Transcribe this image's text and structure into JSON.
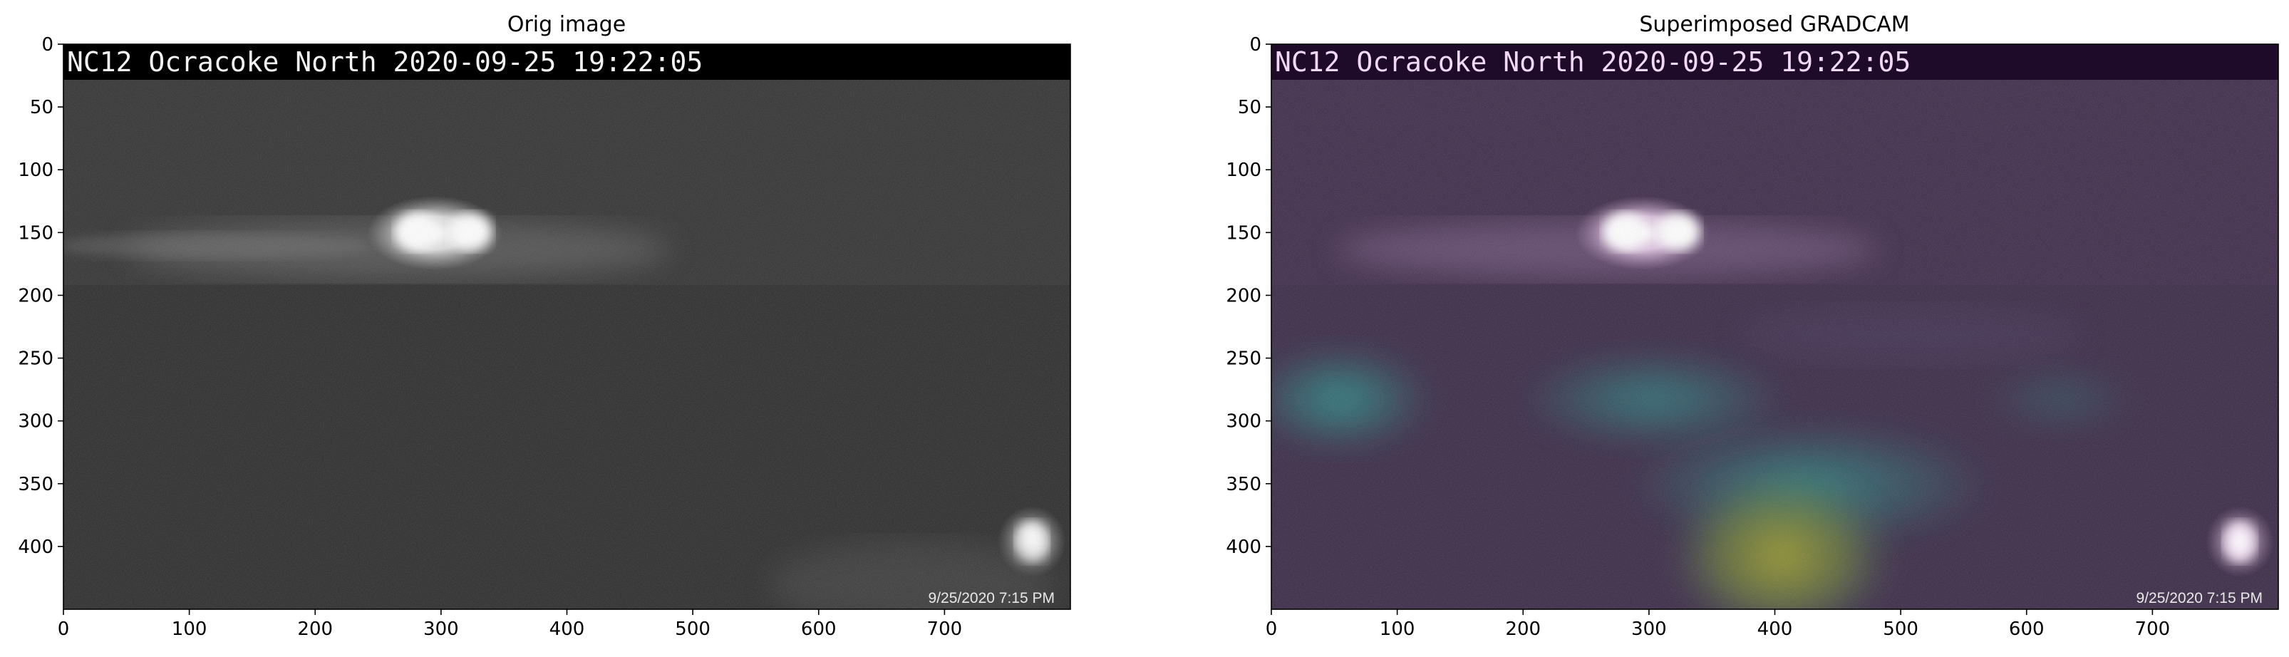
{
  "chart_data": [
    {
      "type": "image",
      "title": "Orig image",
      "overlay_text": "NC12 Ocracoke North 2020-09-25 19:22:05",
      "stamp_text": "9/25/2020 7:15 PM",
      "x_ticks": [
        0,
        100,
        200,
        300,
        400,
        500,
        600,
        700
      ],
      "y_ticks": [
        0,
        50,
        100,
        150,
        200,
        250,
        300,
        350,
        400
      ],
      "xlim": [
        0,
        800
      ],
      "ylim": [
        450,
        0
      ],
      "colormap": "gray"
    },
    {
      "type": "image",
      "title": "Superimposed GRADCAM",
      "overlay_text": "NC12 Ocracoke North 2020-09-25 19:22:05",
      "stamp_text": "9/25/2020 7:15 PM",
      "x_ticks": [
        0,
        100,
        200,
        300,
        400,
        500,
        600,
        700
      ],
      "y_ticks": [
        0,
        50,
        100,
        150,
        200,
        250,
        300,
        350,
        400
      ],
      "xlim": [
        0,
        800
      ],
      "ylim": [
        450,
        0
      ],
      "colormap": "viridis overlay"
    }
  ]
}
